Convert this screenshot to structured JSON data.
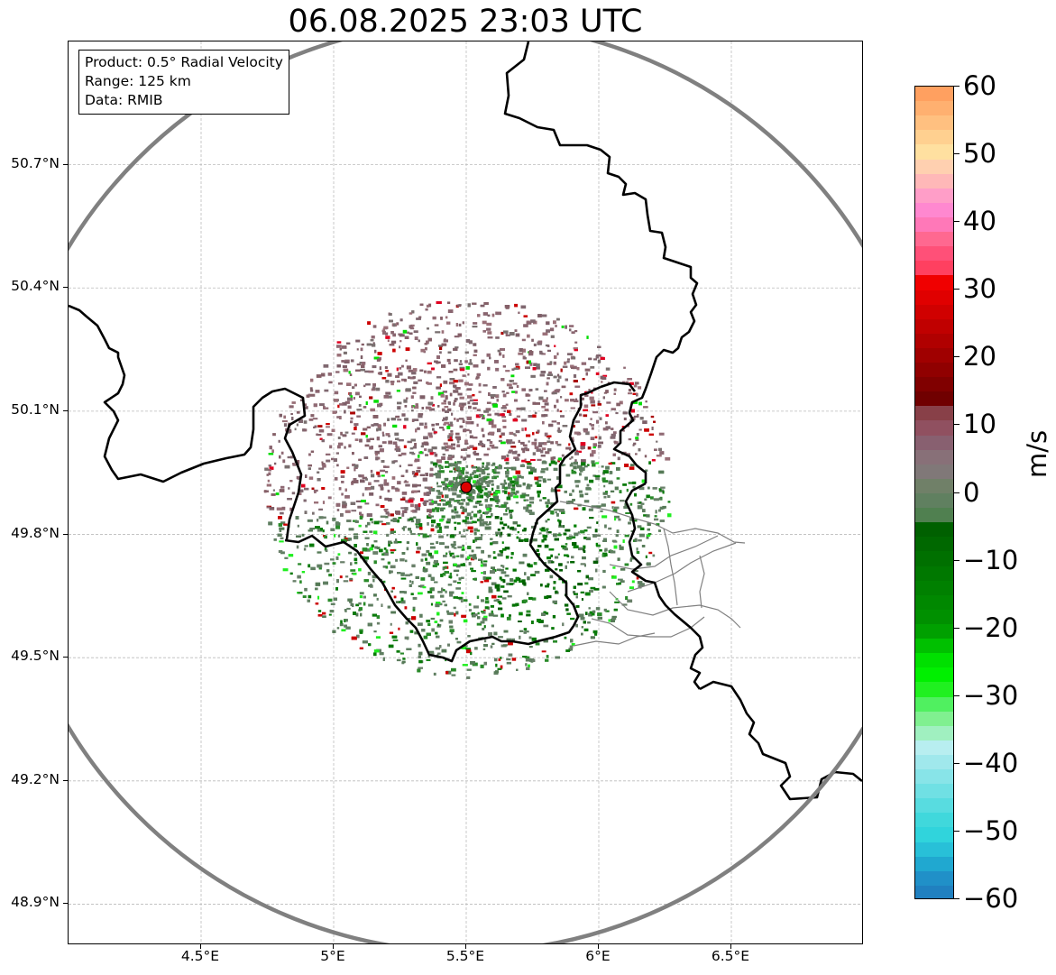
{
  "title": "06.08.2025 23:03 UTC",
  "info": {
    "product": "Product: 0.5° Radial Velocity",
    "range": "Range: 125 km",
    "source": "Data: RMIB"
  },
  "map": {
    "y_ticks": [
      "50.7°N",
      "50.4°N",
      "50.1°N",
      "49.8°N",
      "49.5°N",
      "49.2°N",
      "48.9°N"
    ],
    "x_ticks": [
      "4.5°E",
      "5°E",
      "5.5°E",
      "6°E",
      "6.5°E"
    ],
    "lon_range": [
      4.0,
      7.0
    ],
    "lat_range": [
      48.8,
      51.0
    ],
    "radar_site": {
      "lon": 5.5,
      "lat": 49.915
    },
    "range_ring_color": "#808080",
    "border_color": "#000000",
    "district_color": "#808080"
  },
  "colorbar": {
    "unit": "m/s",
    "min": -60,
    "max": 60,
    "tick_labels": [
      "60",
      "50",
      "40",
      "30",
      "20",
      "10",
      "0",
      "−10",
      "−20",
      "−30",
      "−40",
      "−50",
      "−60"
    ],
    "colors_top_to_bottom": [
      "#ffa060",
      "#ffb070",
      "#ffc080",
      "#ffd090",
      "#ffe0a0",
      "#ffd0b0",
      "#ffb8b8",
      "#ff9ec8",
      "#ff88d0",
      "#ff78b8",
      "#ff6890",
      "#ff5078",
      "#ff4060",
      "#f00000",
      "#e00000",
      "#d00000",
      "#c00000",
      "#b00000",
      "#a00000",
      "#900000",
      "#800000",
      "#700000",
      "#884048",
      "#905060",
      "#886070",
      "#887078",
      "#807878",
      "#708068",
      "#608060",
      "#508050",
      "#006000",
      "#006800",
      "#007000",
      "#007800",
      "#008000",
      "#008800",
      "#009000",
      "#00a000",
      "#00c000",
      "#00e000",
      "#00f000",
      "#20f020",
      "#50f060",
      "#80f090",
      "#a0f0c0",
      "#b8eef0",
      "#a0e8ec",
      "#88e4e8",
      "#70e0e4",
      "#58dce0",
      "#40d8dc",
      "#30d4dc",
      "#28c0d8",
      "#20a8d0",
      "#2090c8",
      "#2080c0"
    ]
  }
}
